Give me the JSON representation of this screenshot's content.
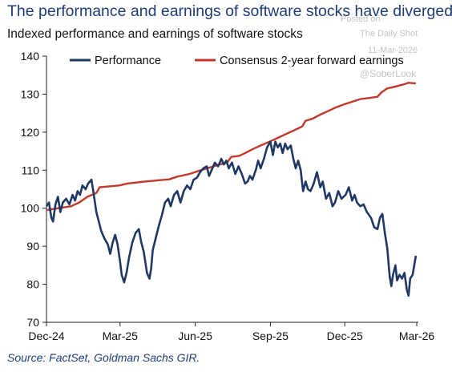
{
  "title": "The performance and earnings of software stocks have diverged",
  "subtitle": "Indexed performance and earnings of software stocks",
  "source": "Source: FactSet, Goldman Sachs GIR.",
  "watermark": {
    "line1": "Posted on",
    "line2": "The Daily Shot",
    "line3": "11-Mar-2026",
    "line4": "@SoberLook"
  },
  "colors": {
    "performance": "#1f3864",
    "earnings": "#c0392b",
    "axis": "#222222",
    "title": "#1f3d7a"
  },
  "chart_data": {
    "type": "line",
    "title": "Indexed performance and earnings of software stocks",
    "ylim": [
      70,
      140
    ],
    "yticks": [
      70,
      80,
      90,
      100,
      110,
      120,
      130,
      140
    ],
    "xlim": [
      "2024-12-01",
      "2026-03-01"
    ],
    "xticks": [
      "Dec-24",
      "Mar-25",
      "Jun-25",
      "Sep-25",
      "Dec-25",
      "Mar-26"
    ],
    "grid": false,
    "legend_position": "top",
    "series": [
      {
        "name": "Performance",
        "color": "#1f3864",
        "points": [
          [
            "2024-12-01",
            100.5
          ],
          [
            "2024-12-04",
            101.5
          ],
          [
            "2024-12-07",
            97.5
          ],
          [
            "2024-12-09",
            96.5
          ],
          [
            "2024-12-12",
            101.0
          ],
          [
            "2024-12-15",
            103.0
          ],
          [
            "2024-12-18",
            99.0
          ],
          [
            "2024-12-21",
            101.5
          ],
          [
            "2024-12-25",
            102.5
          ],
          [
            "2024-12-29",
            101.0
          ],
          [
            "2025-01-02",
            103.5
          ],
          [
            "2025-01-05",
            102.0
          ],
          [
            "2025-01-08",
            104.5
          ],
          [
            "2025-01-11",
            103.5
          ],
          [
            "2025-01-14",
            106.0
          ],
          [
            "2025-01-18",
            105.0
          ],
          [
            "2025-01-21",
            106.5
          ],
          [
            "2025-01-25",
            107.5
          ],
          [
            "2025-01-28",
            103.5
          ],
          [
            "2025-01-31",
            99.0
          ],
          [
            "2025-02-03",
            96.5
          ],
          [
            "2025-02-06",
            94.0
          ],
          [
            "2025-02-10",
            92.0
          ],
          [
            "2025-02-14",
            90.5
          ],
          [
            "2025-02-17",
            88.0
          ],
          [
            "2025-02-20",
            91.0
          ],
          [
            "2025-02-23",
            93.0
          ],
          [
            "2025-02-26",
            90.5
          ],
          [
            "2025-03-01",
            86.0
          ],
          [
            "2025-03-03",
            82.5
          ],
          [
            "2025-03-06",
            80.5
          ],
          [
            "2025-03-09",
            83.0
          ],
          [
            "2025-03-12",
            87.0
          ],
          [
            "2025-03-16",
            91.0
          ],
          [
            "2025-03-20",
            93.5
          ],
          [
            "2025-03-24",
            94.5
          ],
          [
            "2025-03-27",
            91.0
          ],
          [
            "2025-03-30",
            88.5
          ],
          [
            "2025-04-03",
            83.0
          ],
          [
            "2025-04-06",
            81.5
          ],
          [
            "2025-04-08",
            84.0
          ],
          [
            "2025-04-10",
            89.0
          ],
          [
            "2025-04-13",
            91.5
          ],
          [
            "2025-04-17",
            95.0
          ],
          [
            "2025-04-21",
            98.0
          ],
          [
            "2025-04-25",
            101.5
          ],
          [
            "2025-04-29",
            102.5
          ],
          [
            "2025-05-02",
            100.5
          ],
          [
            "2025-05-06",
            103.5
          ],
          [
            "2025-05-10",
            104.5
          ],
          [
            "2025-05-14",
            101.5
          ],
          [
            "2025-05-18",
            104.5
          ],
          [
            "2025-05-22",
            106.0
          ],
          [
            "2025-05-26",
            105.0
          ],
          [
            "2025-05-30",
            107.5
          ],
          [
            "2025-06-03",
            108.0
          ],
          [
            "2025-06-07",
            109.5
          ],
          [
            "2025-06-11",
            110.5
          ],
          [
            "2025-06-15",
            111.0
          ],
          [
            "2025-06-18",
            108.5
          ],
          [
            "2025-06-21",
            110.0
          ],
          [
            "2025-06-25",
            112.0
          ],
          [
            "2025-06-29",
            111.0
          ],
          [
            "2025-07-03",
            113.0
          ],
          [
            "2025-07-06",
            111.5
          ],
          [
            "2025-07-09",
            112.5
          ],
          [
            "2025-07-12",
            110.5
          ],
          [
            "2025-07-16",
            112.0
          ],
          [
            "2025-07-20",
            109.0
          ],
          [
            "2025-07-24",
            111.0
          ],
          [
            "2025-07-28",
            109.0
          ],
          [
            "2025-08-01",
            106.5
          ],
          [
            "2025-08-04",
            107.0
          ],
          [
            "2025-08-07",
            108.5
          ],
          [
            "2025-08-10",
            107.5
          ],
          [
            "2025-08-14",
            110.0
          ],
          [
            "2025-08-17",
            112.5
          ],
          [
            "2025-08-20",
            110.5
          ],
          [
            "2025-08-24",
            113.0
          ],
          [
            "2025-08-28",
            116.0
          ],
          [
            "2025-09-01",
            117.5
          ],
          [
            "2025-09-04",
            114.0
          ],
          [
            "2025-09-07",
            117.5
          ],
          [
            "2025-09-10",
            116.0
          ],
          [
            "2025-09-13",
            117.0
          ],
          [
            "2025-09-16",
            114.5
          ],
          [
            "2025-09-19",
            117.0
          ],
          [
            "2025-09-22",
            115.5
          ],
          [
            "2025-09-26",
            116.5
          ],
          [
            "2025-09-29",
            113.0
          ],
          [
            "2025-10-02",
            110.5
          ],
          [
            "2025-10-05",
            112.5
          ],
          [
            "2025-10-08",
            110.0
          ],
          [
            "2025-10-11",
            104.5
          ],
          [
            "2025-10-14",
            107.0
          ],
          [
            "2025-10-17",
            105.0
          ],
          [
            "2025-10-20",
            104.5
          ],
          [
            "2025-10-24",
            106.5
          ],
          [
            "2025-10-28",
            109.5
          ],
          [
            "2025-11-01",
            105.5
          ],
          [
            "2025-11-04",
            107.0
          ],
          [
            "2025-11-08",
            102.5
          ],
          [
            "2025-11-12",
            104.0
          ],
          [
            "2025-11-16",
            100.5
          ],
          [
            "2025-11-19",
            101.5
          ],
          [
            "2025-11-23",
            104.5
          ],
          [
            "2025-11-27",
            102.5
          ],
          [
            "2025-12-02",
            103.5
          ],
          [
            "2025-12-06",
            105.5
          ],
          [
            "2025-12-10",
            102.0
          ],
          [
            "2025-12-13",
            103.5
          ],
          [
            "2025-12-16",
            101.5
          ],
          [
            "2025-12-20",
            100.5
          ],
          [
            "2025-12-24",
            101.0
          ],
          [
            "2025-12-28",
            99.0
          ],
          [
            "2026-01-02",
            97.5
          ],
          [
            "2026-01-06",
            95.0
          ],
          [
            "2026-01-10",
            94.5
          ],
          [
            "2026-01-13",
            97.5
          ],
          [
            "2026-01-16",
            98.5
          ],
          [
            "2026-01-19",
            93.5
          ],
          [
            "2026-01-22",
            89.5
          ],
          [
            "2026-01-25",
            82.0
          ],
          [
            "2026-01-27",
            79.5
          ],
          [
            "2026-01-29",
            82.5
          ],
          [
            "2026-02-01",
            85.0
          ],
          [
            "2026-02-03",
            81.0
          ],
          [
            "2026-02-06",
            82.5
          ],
          [
            "2026-02-09",
            81.5
          ],
          [
            "2026-02-12",
            83.0
          ],
          [
            "2026-02-15",
            78.5
          ],
          [
            "2026-02-17",
            77.0
          ],
          [
            "2026-02-19",
            81.5
          ],
          [
            "2026-02-22",
            82.5
          ],
          [
            "2026-02-24",
            85.0
          ],
          [
            "2026-02-26",
            87.5
          ]
        ]
      },
      {
        "name": "Consensus 2-year forward earnings",
        "color": "#c0392b",
        "points": [
          [
            "2024-12-01",
            99.5
          ],
          [
            "2024-12-15",
            100.0
          ],
          [
            "2024-12-31",
            100.5
          ],
          [
            "2025-01-10",
            101.5
          ],
          [
            "2025-01-20",
            103.0
          ],
          [
            "2025-01-31",
            104.0
          ],
          [
            "2025-02-04",
            105.5
          ],
          [
            "2025-02-28",
            106.0
          ],
          [
            "2025-03-10",
            106.5
          ],
          [
            "2025-03-31",
            107.0
          ],
          [
            "2025-04-15",
            107.3
          ],
          [
            "2025-04-30",
            107.6
          ],
          [
            "2025-05-10",
            108.3
          ],
          [
            "2025-05-25",
            109.0
          ],
          [
            "2025-06-05",
            109.8
          ],
          [
            "2025-06-20",
            110.8
          ],
          [
            "2025-07-01",
            111.5
          ],
          [
            "2025-07-10",
            112.0
          ],
          [
            "2025-07-15",
            113.5
          ],
          [
            "2025-07-25",
            113.8
          ],
          [
            "2025-08-01",
            114.5
          ],
          [
            "2025-08-10",
            115.5
          ],
          [
            "2025-08-20",
            116.5
          ],
          [
            "2025-08-31",
            117.5
          ],
          [
            "2025-09-10",
            118.5
          ],
          [
            "2025-09-20",
            119.5
          ],
          [
            "2025-09-30",
            120.5
          ],
          [
            "2025-10-10",
            121.5
          ],
          [
            "2025-10-14",
            123.0
          ],
          [
            "2025-10-22",
            123.5
          ],
          [
            "2025-10-31",
            124.5
          ],
          [
            "2025-11-10",
            125.5
          ],
          [
            "2025-11-20",
            126.5
          ],
          [
            "2025-11-30",
            127.3
          ],
          [
            "2025-12-10",
            128.0
          ],
          [
            "2025-12-20",
            128.7
          ],
          [
            "2025-12-31",
            129.0
          ],
          [
            "2026-01-10",
            129.3
          ],
          [
            "2026-01-15",
            130.5
          ],
          [
            "2026-01-22",
            131.5
          ],
          [
            "2026-02-01",
            132.0
          ],
          [
            "2026-02-10",
            132.5
          ],
          [
            "2026-02-17",
            133.0
          ],
          [
            "2026-02-26",
            132.8
          ]
        ]
      }
    ]
  }
}
